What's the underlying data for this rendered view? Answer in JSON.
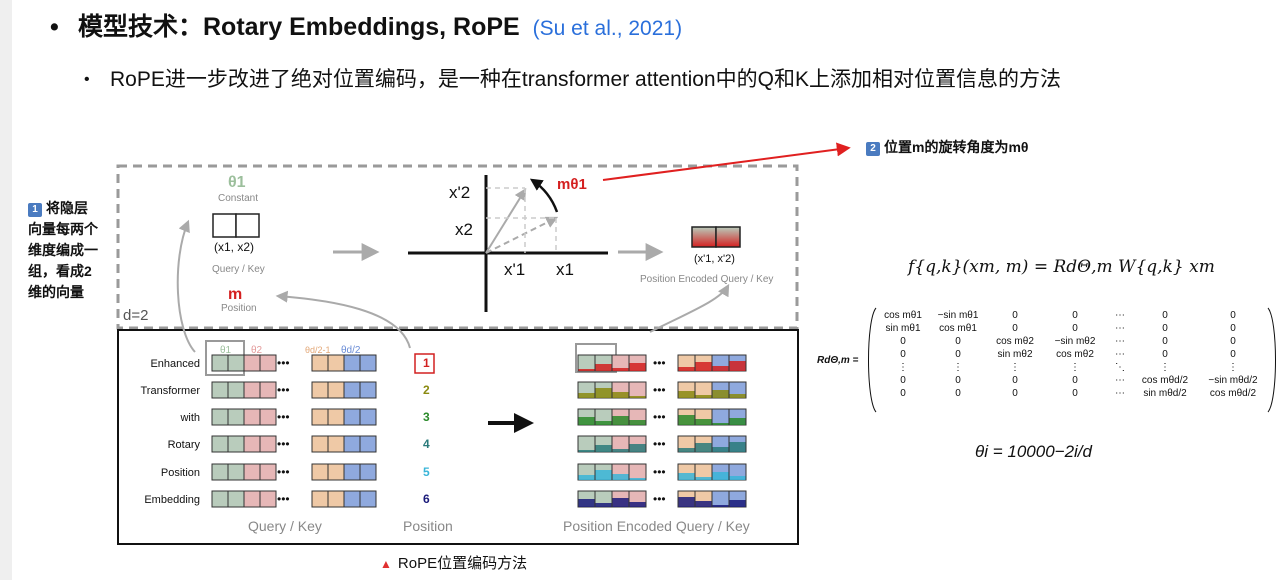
{
  "header": {
    "title": "模型技术：Rotary Embeddings, RoPE",
    "citation": "(Su et al., 2021)",
    "subtitle": "RoPE进一步改进了绝对位置编码，是一种在transformer attention中的Q和K上添加相对位置信息的方法",
    "bullet": "•",
    "sub_bullet": "•"
  },
  "callouts": {
    "left_number": "1",
    "left_text_lines": [
      "将隐层",
      "向量每两个",
      "维度编成一",
      "组，看成2",
      "维的向量"
    ],
    "right_number": "2",
    "right_text": "位置m的旋转角度为mθ"
  },
  "diagram_top": {
    "theta1": "θ1",
    "constant": "Constant",
    "pair_label": "(x1, x2)",
    "query_key": "Query / Key",
    "m_label": "m",
    "position": "Position",
    "d_label": "d=2",
    "axis_x2_prime": "x'2",
    "axis_x2": "x2",
    "axis_x1_prime": "x'1",
    "axis_x1": "x1",
    "rot_label": "mθ1",
    "encoded_pair": "(x'1, x'2)",
    "encoded_label": "Position Encoded Query / Key"
  },
  "diagram_bottom": {
    "words": [
      "Enhanced",
      "Transformer",
      "with",
      "Rotary",
      "Position",
      "Embedding"
    ],
    "positions": [
      "1",
      "2",
      "3",
      "4",
      "5",
      "6"
    ],
    "position_colors": [
      "#d22020",
      "#8a8a10",
      "#2a8a2a",
      "#2a7a7a",
      "#3ab5d8",
      "#1a1a7a"
    ],
    "header_thetas": [
      "θ1",
      "θ2",
      "θd/2-1",
      "θd/2"
    ],
    "label_query_key": "Query / Key",
    "label_position": "Position",
    "label_encoded": "Position Encoded Query / Key",
    "dots": "•••"
  },
  "formulas": {
    "f_eq": "f{q,k}(xm, m) = RdΘ,m W{q,k} xm",
    "r_label": "RdΘ,m =",
    "matrix_rows": [
      [
        "cos mθ1",
        "−sin mθ1",
        "0",
        "0",
        "⋯",
        "0",
        "0"
      ],
      [
        "sin mθ1",
        "cos mθ1",
        "0",
        "0",
        "⋯",
        "0",
        "0"
      ],
      [
        "0",
        "0",
        "cos mθ2",
        "−sin mθ2",
        "⋯",
        "0",
        "0"
      ],
      [
        "0",
        "0",
        "sin mθ2",
        "cos mθ2",
        "⋯",
        "0",
        "0"
      ],
      [
        "⋮",
        "⋮",
        "⋮",
        "⋮",
        "⋱",
        "⋮",
        "⋮"
      ],
      [
        "0",
        "0",
        "0",
        "0",
        "⋯",
        "cos mθd/2",
        "−sin mθd/2"
      ],
      [
        "0",
        "0",
        "0",
        "0",
        "⋯",
        "sin mθd/2",
        "cos mθd/2"
      ]
    ],
    "theta_eq": "θi = 10000−2i/d"
  },
  "caption": {
    "marker": "▲",
    "text": "RoPE位置编码方法"
  },
  "colors": {
    "green_cell": "#b9ccbc",
    "pink_cell": "#e6b7b7",
    "peach_cell": "#efc9a6",
    "blue_cell": "#8fa9de",
    "red_arrow": "#e02020"
  }
}
